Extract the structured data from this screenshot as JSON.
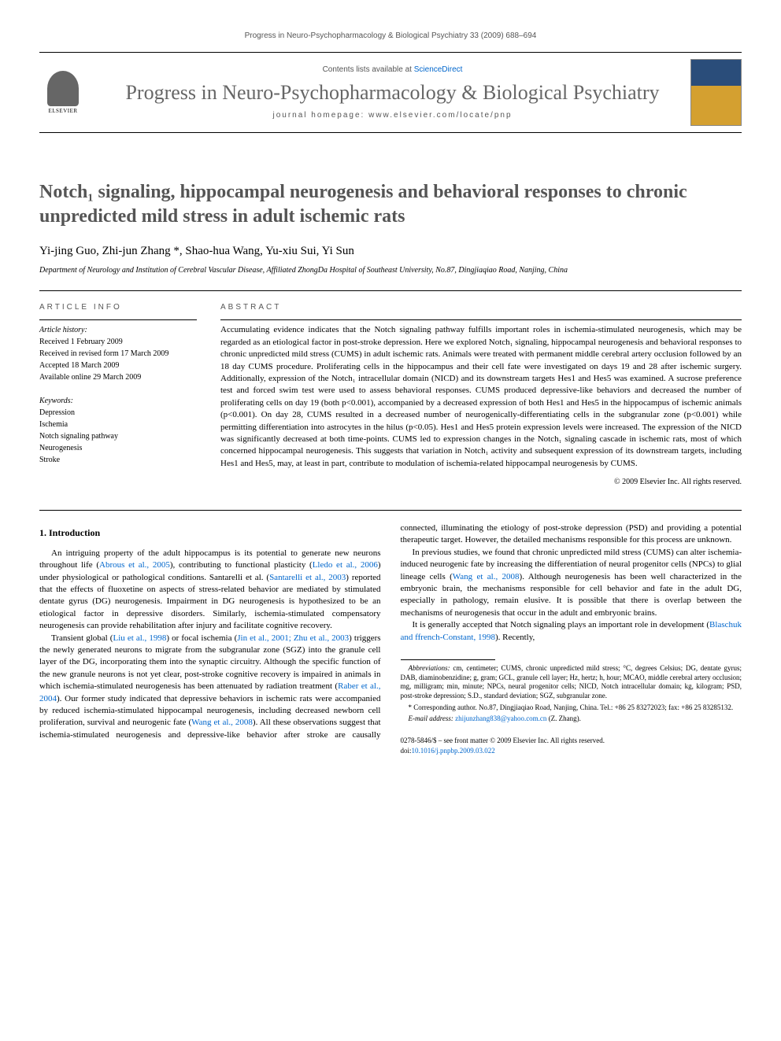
{
  "running_header": "Progress in Neuro-Psychopharmacology & Biological Psychiatry 33 (2009) 688–694",
  "header": {
    "elsevier_label": "ELSEVIER",
    "contents_prefix": "Contents lists available at ",
    "contents_link": "ScienceDirect",
    "journal_name": "Progress in Neuro-Psychopharmacology & Biological Psychiatry",
    "homepage_prefix": "journal homepage: ",
    "homepage_url": "www.elsevier.com/locate/pnp"
  },
  "title": "Notch₁ signaling, hippocampal neurogenesis and behavioral responses to chronic unpredicted mild stress in adult ischemic rats",
  "authors": "Yi-jing Guo, Zhi-jun Zhang *, Shao-hua Wang, Yu-xiu Sui, Yi Sun",
  "affiliation": "Department of Neurology and Institution of Cerebral Vascular Disease, Affiliated ZhongDa Hospital of Southeast University, No.87, Dingjiaqiao Road, Nanjing, China",
  "article_info": {
    "heading": "ARTICLE INFO",
    "history_label": "Article history:",
    "received": "Received 1 February 2009",
    "revised": "Received in revised form 17 March 2009",
    "accepted": "Accepted 18 March 2009",
    "online": "Available online 29 March 2009",
    "keywords_label": "Keywords:",
    "keywords": [
      "Depression",
      "Ischemia",
      "Notch signaling pathway",
      "Neurogenesis",
      "Stroke"
    ]
  },
  "abstract": {
    "heading": "ABSTRACT",
    "text": "Accumulating evidence indicates that the Notch signaling pathway fulfills important roles in ischemia-stimulated neurogenesis, which may be regarded as an etiological factor in post-stroke depression. Here we explored Notch₁ signaling, hippocampal neurogenesis and behavioral responses to chronic unpredicted mild stress (CUMS) in adult ischemic rats. Animals were treated with permanent middle cerebral artery occlusion followed by an 18 day CUMS procedure. Proliferating cells in the hippocampus and their cell fate were investigated on days 19 and 28 after ischemic surgery. Additionally, expression of the Notch₁ intracellular domain (NICD) and its downstream targets Hes1 and Hes5 was examined. A sucrose preference test and forced swim test were used to assess behavioral responses. CUMS produced depressive-like behaviors and decreased the number of proliferating cells on day 19 (both p<0.001), accompanied by a decreased expression of both Hes1 and Hes5 in the hippocampus of ischemic animals (p<0.001). On day 28, CUMS resulted in a decreased number of neurogenically-differentiating cells in the subgranular zone (p<0.001) while permitting differentiation into astrocytes in the hilus (p<0.05). Hes1 and Hes5 protein expression levels were increased. The expression of the NICD was significantly decreased at both time-points. CUMS led to expression changes in the Notch₁ signaling cascade in ischemic rats, most of which concerned hippocampal neurogenesis. This suggests that variation in Notch₁ activity and subsequent expression of its downstream targets, including Hes1 and Hes5, may, at least in part, contribute to modulation of ischemia-related hippocampal neurogenesis by CUMS.",
    "copyright": "© 2009 Elsevier Inc. All rights reserved."
  },
  "intro": {
    "heading": "1. Introduction",
    "p1_a": "An intriguing property of the adult hippocampus is its potential to generate new neurons throughout life (",
    "p1_ref1": "Abrous et al., 2005",
    "p1_b": "), contributing to functional plasticity (",
    "p1_ref2": "Lledo et al., 2006",
    "p1_c": ") under physiological or pathological conditions. Santarelli et al. (",
    "p1_ref3": "Santarelli et al., 2003",
    "p1_d": ") reported that the effects of fluoxetine on aspects of stress-related behavior are mediated by stimulated dentate gyrus (DG) neurogenesis. Impairment in DG neurogenesis is hypothesized to be an etiological factor in depressive disorders. Similarly, ischemia-stimulated compensatory neurogenesis can provide rehabilitation after injury and facilitate cognitive recovery.",
    "p2_a": "Transient global (",
    "p2_ref1": "Liu et al., 1998",
    "p2_b": ") or focal ischemia (",
    "p2_ref2": "Jin et al., 2001; Zhu et al., 2003",
    "p2_c": ") triggers the newly generated neurons to migrate from the subgranular zone (SGZ) into the granule cell layer of the DG, incorporating them into the synaptic circuitry. Although the specific function of the new granule neurons is not yet clear, post-stroke cognitive recovery is impaired in animals in which ischemia-stimulated neurogenesis has been attenuated by radiation treatment (",
    "p2_ref3": "Raber et al., 2004",
    "p2_d": "). Our former study indicated that depressive behaviors in ischemic rats were accompanied by reduced ischemia-stimulated hippocampal neurogenesis, including decreased newborn cell proliferation, survival and neurogenic fate (",
    "p2_ref4": "Wang et al., 2008",
    "p2_e": "). All these observations suggest that ischemia-stimulated neurogenesis and depressive-like behavior after stroke are causally connected, illuminating the etiology of post-stroke depression (PSD) and providing a potential therapeutic target. However, the detailed mechanisms responsible for this process are unknown.",
    "p3_a": "In previous studies, we found that chronic unpredicted mild stress (CUMS) can alter ischemia-induced neurogenic fate by increasing the differentiation of neural progenitor cells (NPCs) to glial lineage cells (",
    "p3_ref1": "Wang et al., 2008",
    "p3_b": "). Although neurogenesis has been well characterized in the embryonic brain, the mechanisms responsible for cell behavior and fate in the adult DG, especially in pathology, remain elusive. It is possible that there is overlap between the mechanisms of neurogenesis that occur in the adult and embryonic brains.",
    "p4_a": "It is generally accepted that Notch signaling plays an important role in development (",
    "p4_ref1": "Blaschuk and ffrench-Constant, 1998",
    "p4_b": "). Recently,"
  },
  "footnotes": {
    "abbrev_label": "Abbreviations:",
    "abbrev_text": " cm, centimeter; CUMS, chronic unpredicted mild stress; °C, degrees Celsius; DG, dentate gyrus; DAB, diaminobenzidine; g, gram; GCL, granule cell layer; Hz, hertz; h, hour; MCAO, middle cerebral artery occlusion; mg, milligram; min, minute; NPCs, neural progenitor cells; NICD, Notch intracellular domain; kg, kilogram; PSD, post-stroke depression; S.D., standard deviation; SGZ, subgranular zone.",
    "corresponding": "* Corresponding author. No.87, Dingjiaqiao Road, Nanjing, China. Tel.: +86 25 83272023; fax: +86 25 83285132.",
    "email_label": "E-mail address:",
    "email": " zhijunzhang838@yahoo.com.cn",
    "email_suffix": " (Z. Zhang)."
  },
  "footer": {
    "issn": "0278-5846/$ – see front matter © 2009 Elsevier Inc. All rights reserved.",
    "doi_prefix": "doi:",
    "doi": "10.1016/j.pnpbp.2009.03.022"
  }
}
